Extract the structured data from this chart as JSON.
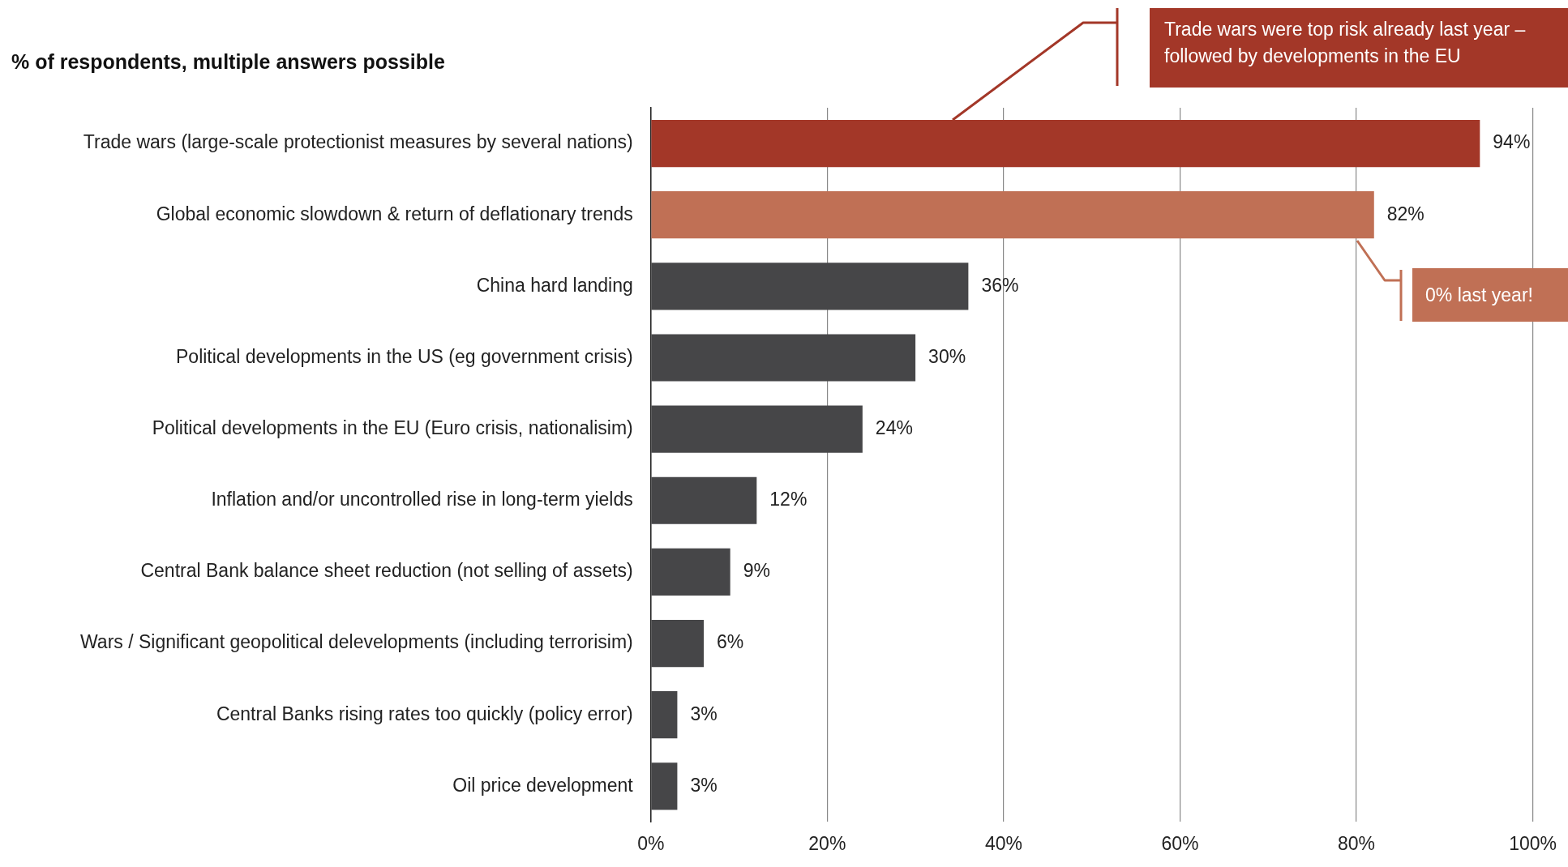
{
  "chart_data": {
    "type": "bar",
    "orientation": "horizontal",
    "title": "% of respondents, multiple answers possible",
    "categories": [
      "Trade wars (large-scale protectionist measures by several nations)",
      "Global economic slowdown & return of deflationary trends",
      "China hard landing",
      "Political developments in the US (eg government crisis)",
      "Political developments in the EU (Euro crisis, nationalisim)",
      "Inflation and/or uncontrolled rise in long-term yields",
      "Central Bank balance sheet reduction (not selling of assets)",
      "Wars / Significant geopolitical delevelopments (including terrorisim)",
      "Central Banks rising rates too quickly (policy error)",
      "Oil price development"
    ],
    "values": [
      94,
      82,
      36,
      30,
      24,
      12,
      9,
      6,
      3,
      3
    ],
    "value_labels": [
      "94%",
      "82%",
      "36%",
      "30%",
      "24%",
      "12%",
      "9%",
      "6%",
      "3%",
      "3%"
    ],
    "colors": [
      "#a33728",
      "#c07055",
      "#464648",
      "#464648",
      "#464648",
      "#464648",
      "#464648",
      "#464648",
      "#464648",
      "#464648"
    ],
    "xlim": [
      0,
      100
    ],
    "xticks": [
      {
        "value": 0,
        "label": "0%"
      },
      {
        "value": 20,
        "label": "20%"
      },
      {
        "value": 40,
        "label": "40%"
      },
      {
        "value": 60,
        "label": "60%"
      },
      {
        "value": 80,
        "label": "80%"
      },
      {
        "value": 100,
        "label": "100%"
      }
    ],
    "grid": "x",
    "legend": false,
    "annotations": [
      "Trade wars were top risk already last year – followed by developments in the EU",
      "0% last year!"
    ]
  }
}
